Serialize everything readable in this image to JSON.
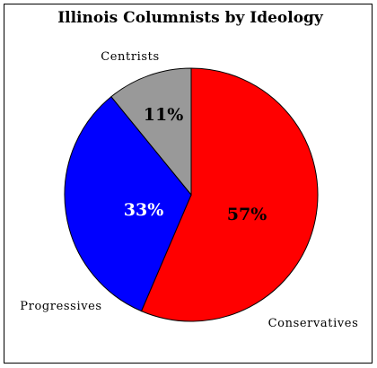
{
  "chart_data": {
    "type": "pie",
    "title": "Illinois Columnists by Ideology",
    "start_angle_deg": 0,
    "direction": "clockwise",
    "slices": [
      {
        "label": "Conservatives",
        "value": 57,
        "display": "57%",
        "color": "#ff0000",
        "value_text_color": "#000000"
      },
      {
        "label": "Progressives",
        "value": 33,
        "display": "33%",
        "color": "#0000ff",
        "value_text_color": "#ffffff"
      },
      {
        "label": "Centrists",
        "value": 11,
        "display": "11%",
        "color": "#999999",
        "value_text_color": "#000000"
      }
    ]
  }
}
